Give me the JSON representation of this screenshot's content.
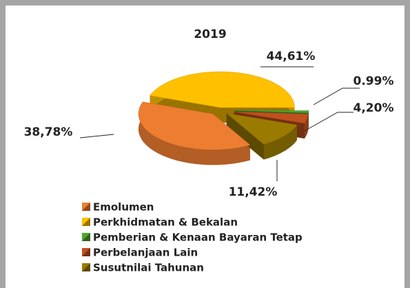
{
  "chart_data": {
    "type": "pie3d",
    "title": "2019",
    "categories": [
      "Emolumen",
      "Perkhidmatan & Bekalan",
      "Pemberian & Kenaan Bayaran Tetap",
      "Perbelanjaan Lain",
      "Susutnilai Tahunan"
    ],
    "values": [
      38.78,
      44.61,
      0.99,
      4.2,
      11.42
    ],
    "value_labels": [
      "38,78%",
      "44,61%",
      "0.99%",
      "4,20%",
      "11,42%"
    ],
    "colors": [
      "#ed7d31",
      "#ffc000",
      "#4ea72e",
      "#c0501e",
      "#9a7b00"
    ]
  }
}
